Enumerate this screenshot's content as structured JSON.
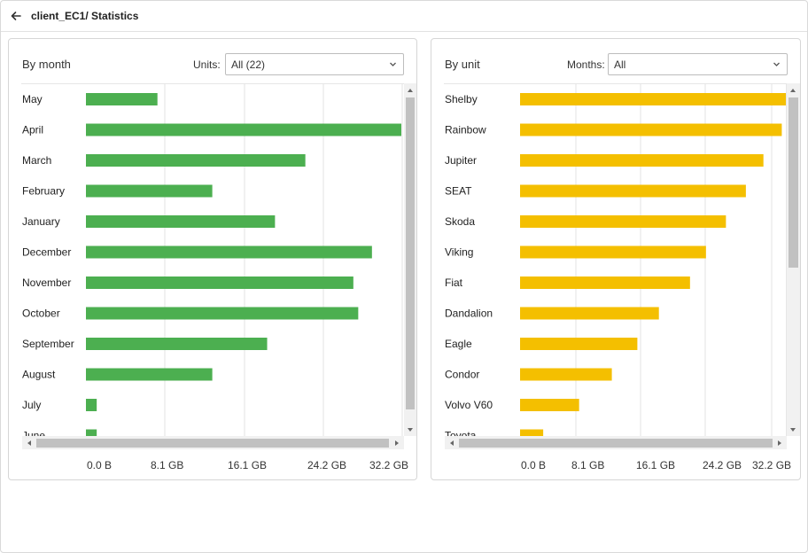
{
  "header": {
    "title": "client_EC1/ Statistics",
    "back_icon": "arrow-left-icon"
  },
  "left_panel": {
    "title": "By month",
    "filter_label": "Units:",
    "filter_value": "All (22)",
    "bar_color": "#4caf50",
    "axis_ticks": [
      "0.0 B",
      "8.1 GB",
      "16.1 GB",
      "24.2 GB",
      "32.2 GB"
    ],
    "chart_data": {
      "type": "bar",
      "orientation": "horizontal",
      "unit": "GB",
      "xlim": [
        0,
        32.2
      ],
      "categories": [
        "May",
        "April",
        "March",
        "February",
        "January",
        "December",
        "November",
        "October",
        "September",
        "August",
        "July",
        "June"
      ],
      "values": [
        7.3,
        32.2,
        22.4,
        12.9,
        19.3,
        29.2,
        27.3,
        27.8,
        18.5,
        12.9,
        1.1,
        1.1
      ]
    }
  },
  "right_panel": {
    "title": "By unit",
    "filter_label": "Months:",
    "filter_value": "All",
    "bar_color": "#f4bf00",
    "axis_ticks": [
      "0.0 B",
      "8.1 GB",
      "16.1 GB",
      "24.2 GB",
      "32.2 GB"
    ],
    "chart_data": {
      "type": "bar",
      "orientation": "horizontal",
      "unit": "GB",
      "xlim": [
        0,
        32.2
      ],
      "categories": [
        "Shelby",
        "Rainbow",
        "Jupiter",
        "SEAT",
        "Skoda",
        "Viking",
        "Fiat",
        "Dandalion",
        "Eagle",
        "Condor",
        "Volvo V60",
        "Toyota"
      ],
      "values": [
        33.5,
        32.8,
        30.5,
        28.3,
        25.8,
        23.3,
        21.3,
        17.4,
        14.7,
        11.5,
        7.4,
        2.9
      ]
    }
  }
}
